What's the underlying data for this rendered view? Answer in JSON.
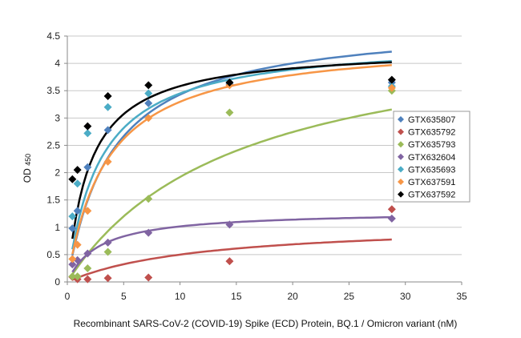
{
  "chart_data": {
    "type": "scatter",
    "xlabel": "Recombinant SARS-CoV-2  (COVID-19) Spike (ECD)  Protein, BQ.1 / Omicron variant (nM)",
    "ylabel": "OD",
    "ylabel_subscript": "450",
    "xlim": [
      0,
      35
    ],
    "ylim": [
      0,
      4.5
    ],
    "x_ticks": [
      "0",
      "5",
      "10",
      "15",
      "20",
      "25",
      "30",
      "35"
    ],
    "y_ticks": [
      "0",
      "0.5",
      "1",
      "1.5",
      "2",
      "2.5",
      "3",
      "3.5",
      "4",
      "4.5"
    ],
    "grid": "horizontal",
    "legend_position": "right",
    "x": [
      0.45,
      0.9,
      1.8,
      3.6,
      7.2,
      14.4,
      28.8
    ],
    "series": [
      {
        "name": "GTX635807",
        "color": "#4f81bd",
        "values": [
          0.98,
          1.3,
          2.1,
          2.78,
          3.27,
          3.62,
          3.65
        ],
        "fit": {
          "top": 4.8,
          "ec50": 4.0
        }
      },
      {
        "name": "GTX635792",
        "color": "#c0504d",
        "values": [
          0.09,
          0.05,
          0.05,
          0.07,
          0.08,
          0.38,
          1.33
        ],
        "fit": {
          "top": 1.1,
          "ec50": 12.0
        }
      },
      {
        "name": "GTX635793",
        "color": "#9bbb59",
        "values": [
          0.1,
          0.1,
          0.25,
          0.55,
          1.52,
          3.1,
          3.5
        ],
        "fit": {
          "top": 4.8,
          "ec50": 15.0
        }
      },
      {
        "name": "GTX632604",
        "color": "#8064a2",
        "values": [
          0.32,
          0.4,
          0.52,
          0.72,
          0.9,
          1.05,
          1.16
        ],
        "fit": {
          "top": 1.3,
          "ec50": 2.8
        }
      },
      {
        "name": "GTX635693",
        "color": "#4bacc6",
        "values": [
          1.2,
          1.8,
          2.72,
          3.2,
          3.45,
          3.65,
          3.58
        ],
        "fit": {
          "top": 4.45,
          "ec50": 2.9
        }
      },
      {
        "name": "GTX637591",
        "color": "#f79646",
        "values": [
          0.42,
          0.68,
          1.3,
          2.2,
          3.0,
          3.6,
          3.55
        ],
        "fit": {
          "top": 4.45,
          "ec50": 3.5
        }
      },
      {
        "name": "GTX637592",
        "color": "#000000",
        "values": [
          1.88,
          2.05,
          2.85,
          3.4,
          3.6,
          3.65,
          3.7
        ],
        "fit": {
          "top": 4.3,
          "ec50": 2.0
        }
      }
    ]
  }
}
